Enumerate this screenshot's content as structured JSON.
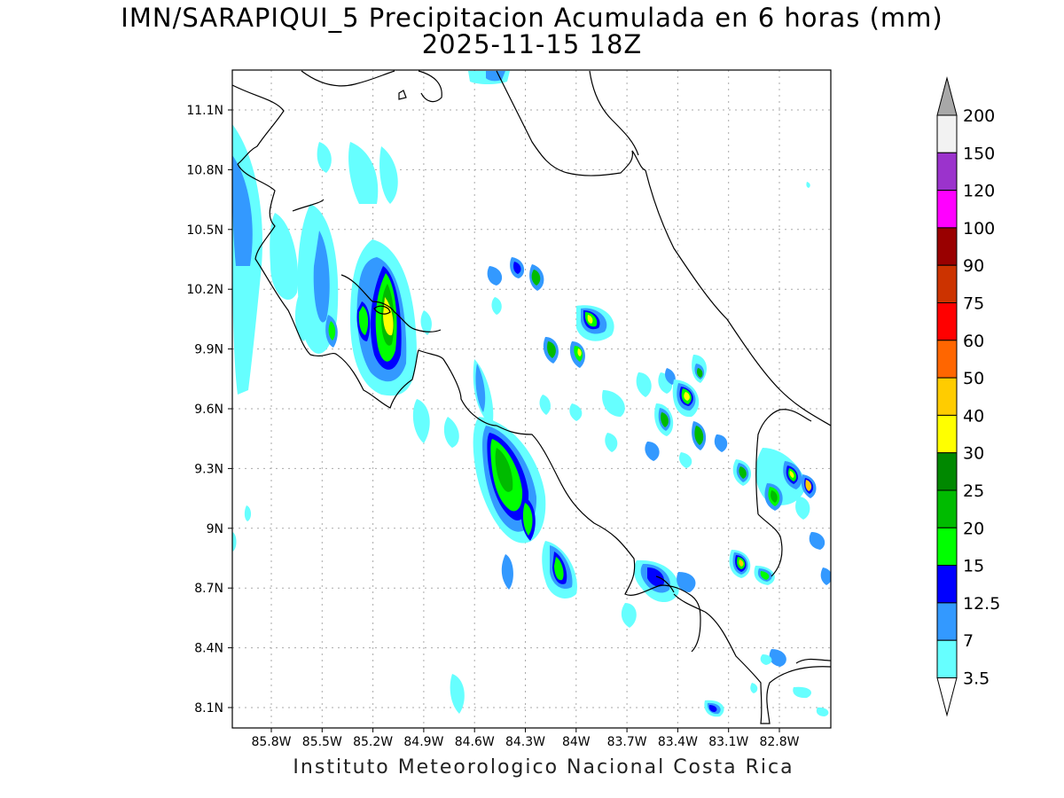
{
  "title": {
    "line1": "IMN/SARAPIQUI_5 Precipitacion Acumulada en 6 horas (mm)",
    "line2": "2025-11-15 18Z"
  },
  "footer": "Instituto Meteorologico Nacional Costa Rica",
  "axes": {
    "lat_labels": [
      "11.1N",
      "10.8N",
      "10.5N",
      "10.2N",
      "9.9N",
      "9.6N",
      "9.3N",
      "9N",
      "8.7N",
      "8.4N",
      "8.1N"
    ],
    "lon_labels": [
      "85.8W",
      "85.5W",
      "85.2W",
      "84.9W",
      "84.6W",
      "84.3W",
      "84W",
      "83.7W",
      "83.4W",
      "83.1W",
      "82.8W"
    ]
  },
  "legend": {
    "levels": [
      {
        "label": "200",
        "color": "#a8a8a8"
      },
      {
        "label": "150",
        "color": "#f2f2f2"
      },
      {
        "label": "120",
        "color": "#9b33cc"
      },
      {
        "label": "100",
        "color": "#ff00ff"
      },
      {
        "label": "90",
        "color": "#990000"
      },
      {
        "label": "75",
        "color": "#cc3300"
      },
      {
        "label": "60",
        "color": "#ff0000"
      },
      {
        "label": "50",
        "color": "#ff6600"
      },
      {
        "label": "40",
        "color": "#ffcc00"
      },
      {
        "label": "30",
        "color": "#ffff00"
      },
      {
        "label": "25",
        "color": "#008800"
      },
      {
        "label": "20",
        "color": "#00bb00"
      },
      {
        "label": "15",
        "color": "#00ff00"
      },
      {
        "label": "12.5",
        "color": "#0000ff"
      },
      {
        "label": "7",
        "color": "#3399ff"
      },
      {
        "label": "3.5",
        "color": "#66ffff"
      }
    ]
  }
}
